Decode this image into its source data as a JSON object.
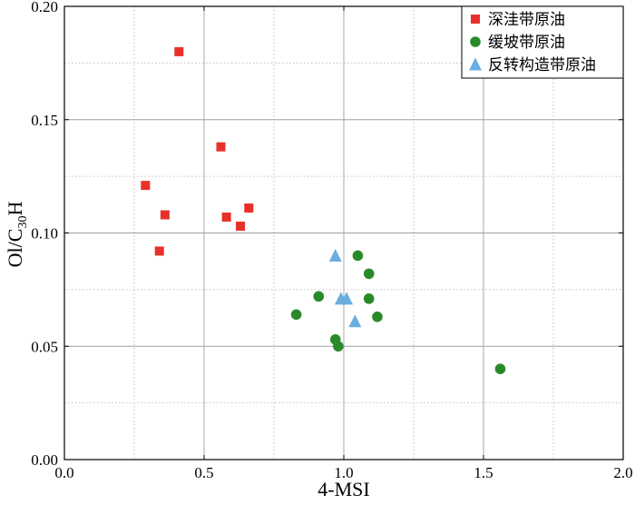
{
  "chart_data": {
    "type": "scatter",
    "xlabel": "4-MSI",
    "ylabel": {
      "main": "Ol/C",
      "sub": "30",
      "end": "H"
    },
    "xlim": [
      0.0,
      2.0
    ],
    "ylim": [
      0.0,
      0.2
    ],
    "x_ticks": [
      "0.0",
      "0.5",
      "1.0",
      "1.5",
      "2.0"
    ],
    "y_ticks": [
      "0.00",
      "0.05",
      "0.10",
      "0.15",
      "0.20"
    ],
    "grid": true,
    "legend_position": "top-right",
    "series": [
      {
        "name": "深洼带原油",
        "marker": "square",
        "color": "#e8302a",
        "points": [
          [
            0.41,
            0.18
          ],
          [
            0.56,
            0.138
          ],
          [
            0.29,
            0.121
          ],
          [
            0.36,
            0.108
          ],
          [
            0.58,
            0.107
          ],
          [
            0.66,
            0.111
          ],
          [
            0.63,
            0.103
          ],
          [
            0.34,
            0.092
          ]
        ]
      },
      {
        "name": "缓坡带原油",
        "marker": "circle",
        "color": "#2a8a2a",
        "points": [
          [
            1.05,
            0.09
          ],
          [
            1.09,
            0.082
          ],
          [
            0.91,
            0.072
          ],
          [
            1.09,
            0.071
          ],
          [
            0.83,
            0.064
          ],
          [
            1.12,
            0.063
          ],
          [
            0.97,
            0.053
          ],
          [
            0.98,
            0.05
          ],
          [
            1.56,
            0.04
          ]
        ]
      },
      {
        "name": "反转构造带原油",
        "marker": "triangle",
        "color": "#6aaee0",
        "points": [
          [
            0.97,
            0.09
          ],
          [
            0.99,
            0.071
          ],
          [
            1.01,
            0.071
          ],
          [
            1.04,
            0.061
          ]
        ]
      }
    ]
  }
}
